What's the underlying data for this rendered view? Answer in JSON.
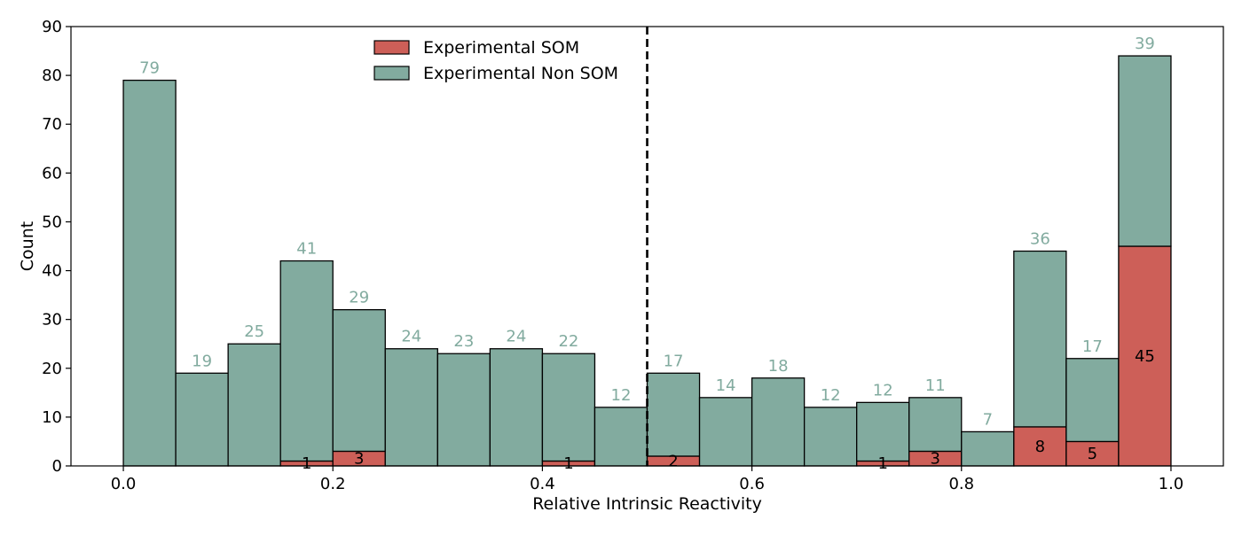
{
  "chart_data": {
    "type": "bar",
    "stacked": true,
    "xlabel": "Relative Intrinsic Reactivity",
    "ylabel": "Count",
    "xlim": [
      -0.05,
      1.05
    ],
    "ylim": [
      0,
      90
    ],
    "bin_width": 0.05,
    "bin_starts": [
      0.0,
      0.05,
      0.1,
      0.15,
      0.2,
      0.25,
      0.3,
      0.35,
      0.4,
      0.45,
      0.5,
      0.55,
      0.6,
      0.65,
      0.7,
      0.75,
      0.8,
      0.85,
      0.9,
      0.95
    ],
    "x_ticks": [
      0.0,
      0.2,
      0.4,
      0.6,
      0.8,
      1.0
    ],
    "x_tick_labels": [
      "0.0",
      "0.2",
      "0.4",
      "0.6",
      "0.8",
      "1.0"
    ],
    "y_ticks": [
      0,
      10,
      20,
      30,
      40,
      50,
      60,
      70,
      80,
      90
    ],
    "y_tick_labels": [
      "0",
      "10",
      "20",
      "30",
      "40",
      "50",
      "60",
      "70",
      "80",
      "90"
    ],
    "threshold_x": 0.5,
    "legend_position": "top-center",
    "series": [
      {
        "name": "Experimental SOM",
        "color": "#cd5f58",
        "values": [
          0,
          0,
          0,
          1,
          3,
          0,
          0,
          0,
          1,
          0,
          2,
          0,
          0,
          0,
          1,
          3,
          0,
          8,
          5,
          45
        ],
        "labels": [
          "",
          "",
          "",
          "1",
          "3",
          "",
          "",
          "",
          "1",
          "",
          "2",
          "",
          "",
          "",
          "1",
          "3",
          "",
          "8",
          "5",
          "45"
        ]
      },
      {
        "name": "Experimental Non SOM",
        "color": "#82ab9f",
        "values": [
          79,
          19,
          25,
          41,
          29,
          24,
          23,
          24,
          22,
          12,
          17,
          14,
          18,
          12,
          12,
          11,
          7,
          36,
          17,
          39
        ],
        "labels": [
          "79",
          "19",
          "25",
          "41",
          "29",
          "24",
          "23",
          "24",
          "22",
          "12",
          "17",
          "14",
          "18",
          "12",
          "12",
          "11",
          "7",
          "36",
          "17",
          "39"
        ]
      }
    ]
  }
}
